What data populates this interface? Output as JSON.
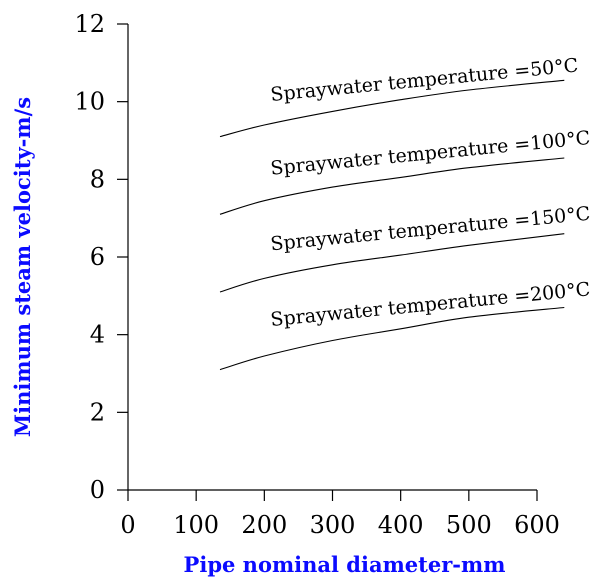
{
  "chart_data": {
    "type": "line",
    "title": "",
    "xlabel": "Pipe nominal diameter-mm",
    "ylabel": "Minimum steam velocity-m/s",
    "xlim": [
      0,
      600
    ],
    "ylim": [
      0,
      12
    ],
    "x_ticks": [
      "0",
      "100",
      "200",
      "300",
      "400",
      "500",
      "600"
    ],
    "y_ticks": [
      "0",
      "2",
      "4",
      "6",
      "8",
      "10",
      "12"
    ],
    "grid": false,
    "series": [
      {
        "name": "Sprayswater temperature =50°C",
        "label": "Spraywater temperature =50°C",
        "x": [
          135,
          200,
          300,
          400,
          500,
          640
        ],
        "y": [
          9.1,
          9.4,
          9.75,
          10.05,
          10.3,
          10.55
        ]
      },
      {
        "name": "Spraywater temperature =100°C",
        "label": "Spraywater temperature =100°C",
        "x": [
          135,
          200,
          300,
          400,
          500,
          640
        ],
        "y": [
          7.1,
          7.45,
          7.8,
          8.05,
          8.3,
          8.55
        ]
      },
      {
        "name": "Spraywater temperature =150°C",
        "label": "Spraywater temperature =150°C",
        "x": [
          135,
          200,
          300,
          400,
          500,
          640
        ],
        "y": [
          5.1,
          5.45,
          5.8,
          6.05,
          6.3,
          6.6
        ]
      },
      {
        "name": "Spraywater temperature =200°C",
        "label": "Spraywater temperature =200°C",
        "x": [
          135,
          200,
          300,
          400,
          500,
          640
        ],
        "y": [
          3.1,
          3.45,
          3.85,
          4.15,
          4.45,
          4.7
        ]
      }
    ]
  }
}
